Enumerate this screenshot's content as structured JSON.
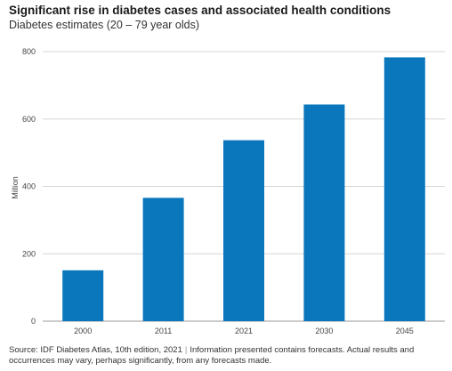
{
  "chart_data": {
    "type": "bar",
    "title": "Significant rise in diabetes cases and associated health conditions",
    "subtitle": "Diabetes estimates (20 – 79 year olds)",
    "xlabel": "",
    "ylabel": "Million",
    "categories": [
      "2000",
      "2011",
      "2021",
      "2030",
      "2045"
    ],
    "values": [
      151,
      366,
      537,
      643,
      783
    ],
    "ylim": [
      0,
      800
    ],
    "yticks": [
      0,
      200,
      400,
      600,
      800
    ],
    "grid": "horizontal",
    "bar_color": "#0a77bd",
    "source": "Source: IDF Diabetes Atlas, 10th edition, 2021",
    "note": "Information presented contains forecasts. Actual results and occurrences may vary, perhaps significantly, from any forecasts made."
  }
}
